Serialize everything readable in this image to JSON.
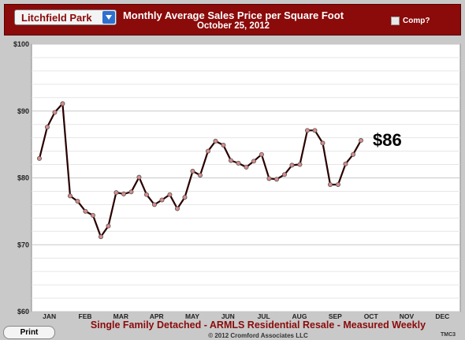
{
  "header": {
    "location_select": "Litchfield Park",
    "title": "Monthly Average Sales Price per Square Foot",
    "date": "October 25, 2012",
    "comp_label": "Comp?"
  },
  "footer": {
    "print_label": "Print",
    "subtitle": "Single Family Detached - ARMLS Residential Resale - Measured Weekly",
    "copyright": "© 2012 Cromford Associates LLC",
    "code": "TMC3"
  },
  "colors": {
    "header_bg": "#8b0a0a",
    "line": "#2a0000",
    "marker": "#d98c8c",
    "callout": "#000000"
  },
  "chart_data": {
    "type": "line",
    "title": "Monthly Average Sales Price per Square Foot",
    "subtitle": "October 25, 2012",
    "ylim": [
      60,
      100
    ],
    "yticks": [
      "$60",
      "$70",
      "$80",
      "$90",
      "$100"
    ],
    "ytick_values": [
      60,
      70,
      80,
      90,
      100
    ],
    "months": [
      "JAN",
      "FEB",
      "MAR",
      "APR",
      "MAY",
      "JUN",
      "JUL",
      "AUG",
      "SEP",
      "OCT",
      "NOV",
      "DEC"
    ],
    "x_range": [
      0,
      12
    ],
    "grid": true,
    "callout": "$86",
    "series": [
      {
        "x": [
          0.22,
          0.44,
          0.65,
          0.87,
          1.08,
          1.29,
          1.51,
          1.72,
          1.94,
          2.15,
          2.37,
          2.58,
          2.79,
          3.01,
          3.22,
          3.44,
          3.65,
          3.87,
          4.08,
          4.29,
          4.51,
          4.72,
          4.94,
          5.15,
          5.37,
          5.58,
          5.79,
          6.01,
          6.22,
          6.44,
          6.65,
          6.86,
          7.08,
          7.29,
          7.51,
          7.72,
          7.93,
          8.15,
          8.36,
          8.58,
          8.79,
          9.0,
          9.22,
          9.44,
          9.65
        ],
        "values": [
          82.9,
          87.6,
          89.8,
          91.1,
          77.3,
          76.5,
          75.0,
          74.4,
          71.2,
          72.8,
          77.8,
          77.6,
          77.9,
          80.1,
          77.5,
          76.0,
          76.7,
          77.5,
          75.4,
          77.1,
          81.0,
          80.4,
          84.0,
          85.5,
          84.9,
          82.6,
          82.2,
          81.6,
          82.5,
          83.5,
          79.9,
          79.8,
          80.5,
          81.9,
          82.0,
          87.1,
          87.1,
          85.2,
          79.0,
          79.0,
          82.1,
          83.5,
          85.6,
          null,
          null
        ]
      }
    ]
  }
}
